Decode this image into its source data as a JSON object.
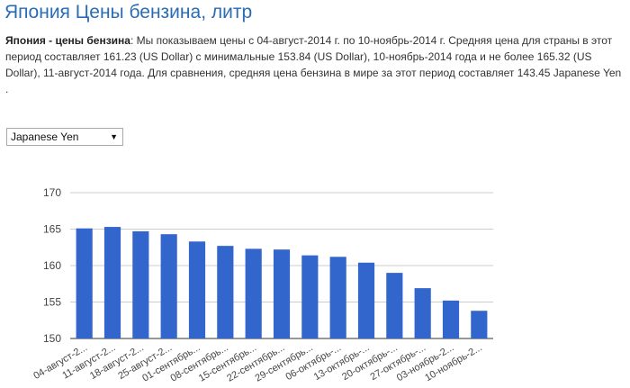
{
  "page": {
    "title": "Япония Цены бензина, литр",
    "summary_bold": "Япония - цены бензина",
    "summary_text": ": Мы показываем цены с 04-август-2014 г. по 10-ноябрь-2014 г. Средняя цена для страны в этот период составляет 161.23 (US Dollar) с минимальные 153.84 (US Dollar), 10-ноябрь-2014 года и не более 165.32 (US Dollar), 11-август-2014 года. Для сравнения, средняя цена бензина в мире за этот период составляет 143.45 Japanese Yen ."
  },
  "currency_select": {
    "value": "Japanese Yen",
    "arrow_icon": "triangle-down-icon"
  },
  "chart_data": {
    "type": "bar",
    "categories": [
      "04-август-2...",
      "11-август-2...",
      "18-август-2...",
      "25-август-2...",
      "01-сентябрь...",
      "08-сентябрь...",
      "15-сентябрь...",
      "22-сентябрь...",
      "29-сентябрь...",
      "06-октябрь-...",
      "13-октябрь-...",
      "20-октябрь-...",
      "27-октябрь-...",
      "03-ноябрь-2...",
      "10-ноябрь-2..."
    ],
    "values": [
      165.1,
      165.3,
      164.7,
      164.3,
      163.3,
      162.7,
      162.3,
      162.2,
      161.4,
      161.2,
      160.4,
      159.0,
      156.9,
      155.2,
      153.8
    ],
    "ylim": [
      150,
      170
    ],
    "yticks": [
      "150",
      "155",
      "160",
      "165",
      "170"
    ],
    "grid": true,
    "bar_color": "#3366cc",
    "title": "",
    "xlabel": "",
    "ylabel": ""
  }
}
